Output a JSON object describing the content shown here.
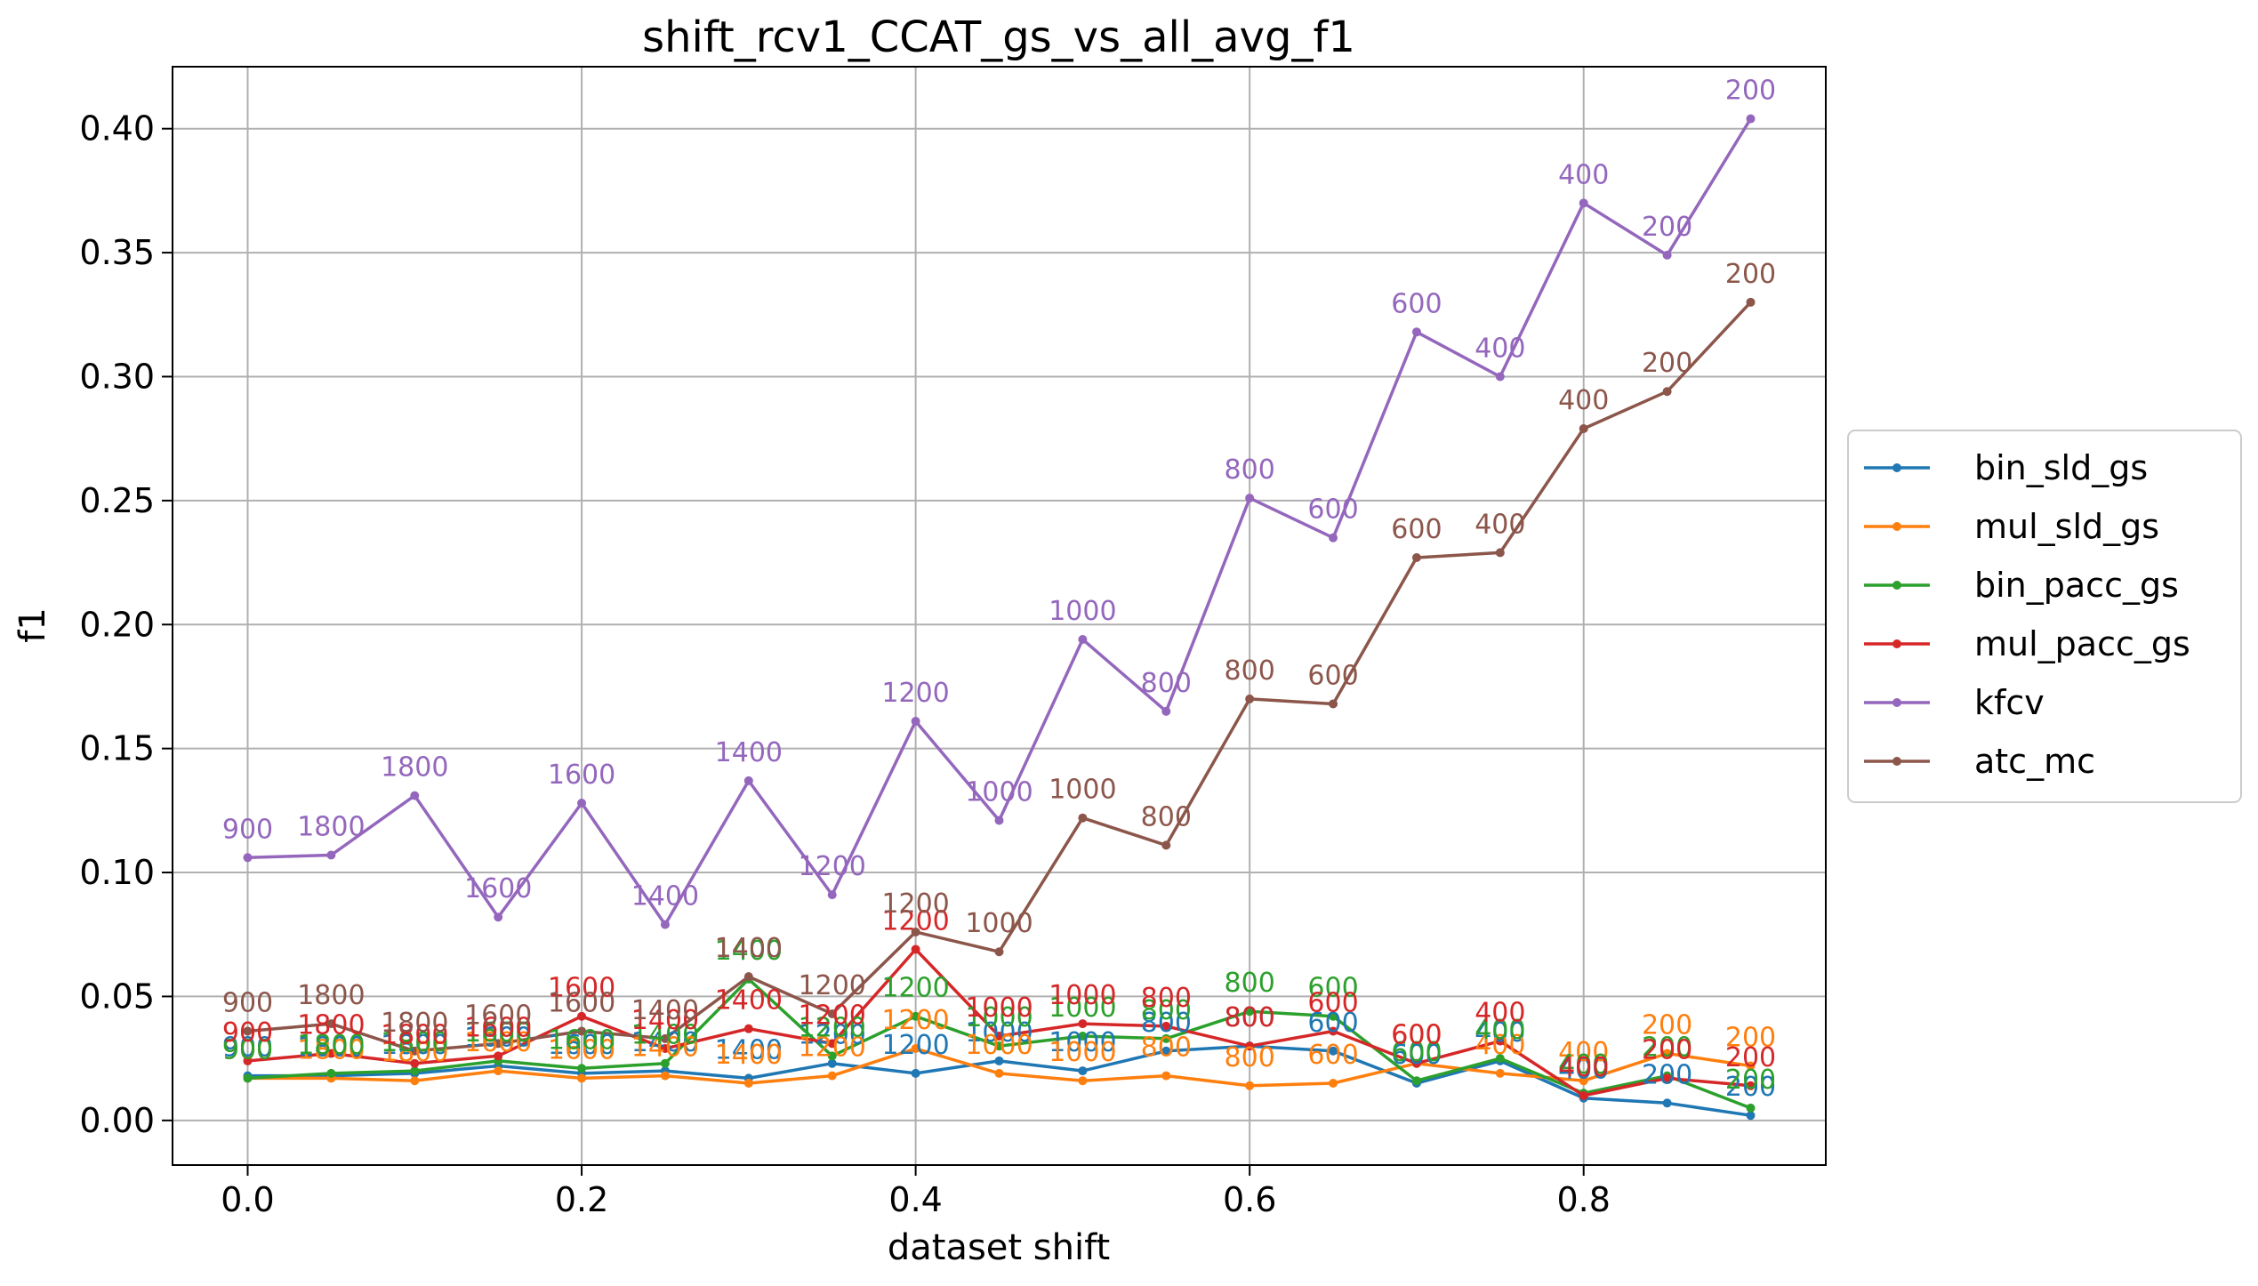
{
  "chart_data": {
    "type": "line",
    "title": "shift_rcv1_CCAT_gs_vs_all_avg_f1",
    "xlabel": "dataset shift",
    "ylabel": "f1",
    "xlim": [
      -0.045,
      0.945
    ],
    "ylim": [
      -0.018,
      0.425
    ],
    "xticks": [
      0.0,
      0.2,
      0.4,
      0.6,
      0.8
    ],
    "xtick_labels": [
      "0.0",
      "0.2",
      "0.4",
      "0.6",
      "0.8"
    ],
    "yticks": [
      0.0,
      0.05,
      0.1,
      0.15,
      0.2,
      0.25,
      0.3,
      0.35,
      0.4
    ],
    "ytick_labels": [
      "0.00",
      "0.05",
      "0.10",
      "0.15",
      "0.20",
      "0.25",
      "0.30",
      "0.35",
      "0.40"
    ],
    "grid": true,
    "legend_position": "right-outside",
    "x": [
      0.0,
      0.05,
      0.1,
      0.15,
      0.2,
      0.25,
      0.3,
      0.35,
      0.4,
      0.45,
      0.5,
      0.55,
      0.6,
      0.65,
      0.7,
      0.75,
      0.8,
      0.85,
      0.9
    ],
    "series": [
      {
        "name": "bin_sld_gs",
        "color": "#1f77b4",
        "values": [
          0.018,
          0.018,
          0.019,
          0.022,
          0.019,
          0.02,
          0.017,
          0.023,
          0.019,
          0.024,
          0.02,
          0.028,
          0.03,
          0.028,
          0.015,
          0.024,
          0.009,
          0.007,
          0.002
        ],
        "labels": [
          "900",
          "1800",
          "1800",
          "1600",
          "1600",
          "1400",
          "1400",
          "1200",
          "1200",
          "1000",
          "1000",
          "800",
          "800",
          "600",
          "600",
          "400",
          "400",
          "200",
          "200"
        ]
      },
      {
        "name": "mul_sld_gs",
        "color": "#ff7f0e",
        "values": [
          0.017,
          0.017,
          0.016,
          0.02,
          0.017,
          0.018,
          0.015,
          0.018,
          0.029,
          0.019,
          0.016,
          0.018,
          0.014,
          0.015,
          0.023,
          0.019,
          0.016,
          0.027,
          0.022
        ],
        "labels": [
          "900",
          "1800",
          "1800",
          "1600",
          "1600",
          "1400",
          "1400",
          "1200",
          "1200",
          "1000",
          "1000",
          "800",
          "800",
          "600",
          "600",
          "400",
          "400",
          "200",
          "200"
        ]
      },
      {
        "name": "bin_pacc_gs",
        "color": "#2ca02c",
        "values": [
          0.017,
          0.019,
          0.02,
          0.024,
          0.021,
          0.023,
          0.057,
          0.026,
          0.042,
          0.03,
          0.034,
          0.033,
          0.044,
          0.042,
          0.016,
          0.025,
          0.011,
          0.018,
          0.005
        ],
        "labels": [
          "900",
          "1800",
          "1800",
          "1600",
          "1600",
          "1400",
          "1400",
          "1200",
          "1200",
          "1000",
          "1000",
          "800",
          "800",
          "600",
          "600",
          "400",
          "400",
          "200",
          "200"
        ]
      },
      {
        "name": "mul_pacc_gs",
        "color": "#d62728",
        "values": [
          0.024,
          0.027,
          0.023,
          0.026,
          0.042,
          0.029,
          0.037,
          0.031,
          0.069,
          0.034,
          0.039,
          0.038,
          0.03,
          0.036,
          0.023,
          0.032,
          0.01,
          0.017,
          0.014
        ],
        "labels": [
          "900",
          "1800",
          "1800",
          "1600",
          "1600",
          "1400",
          "1400",
          "1200",
          "1200",
          "1000",
          "1000",
          "800",
          "800",
          "600",
          "600",
          "400",
          "400",
          "200",
          "200"
        ]
      },
      {
        "name": "kfcv",
        "color": "#9467bd",
        "values": [
          0.106,
          0.107,
          0.131,
          0.082,
          0.128,
          0.079,
          0.137,
          0.091,
          0.161,
          0.121,
          0.194,
          0.165,
          0.251,
          0.235,
          0.318,
          0.3,
          0.37,
          0.349,
          0.404
        ],
        "labels": [
          "900",
          "1800",
          "1800",
          "1600",
          "1600",
          "1400",
          "1400",
          "1200",
          "1200",
          "1000",
          "1000",
          "800",
          "800",
          "600",
          "600",
          "400",
          "400",
          "200",
          "200"
        ]
      },
      {
        "name": "atc_mc",
        "color": "#8c564b",
        "values": [
          0.036,
          0.039,
          0.028,
          0.031,
          0.036,
          0.033,
          0.058,
          0.043,
          0.076,
          0.068,
          0.122,
          0.111,
          0.17,
          0.168,
          0.227,
          0.229,
          0.279,
          0.294,
          0.33
        ],
        "labels": [
          "900",
          "1800",
          "1800",
          "1600",
          "1600",
          "1400",
          "1400",
          "1200",
          "1200",
          "1000",
          "1000",
          "800",
          "800",
          "600",
          "600",
          "400",
          "400",
          "200",
          "200"
        ]
      }
    ]
  }
}
